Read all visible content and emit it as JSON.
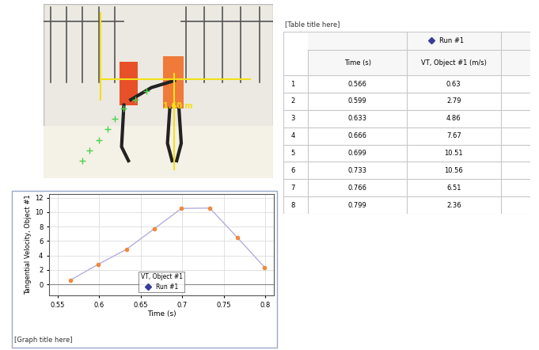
{
  "photo": {
    "label": "1.60 m"
  },
  "table": {
    "title": "[Table title here]",
    "series_header": "Run #1",
    "columns": [
      "Time (s)",
      "VT, Object #1 (m/s)"
    ],
    "rows": [
      [
        1,
        0.566,
        0.63
      ],
      [
        2,
        0.599,
        2.79
      ],
      [
        3,
        0.633,
        4.86
      ],
      [
        4,
        0.666,
        7.67
      ],
      [
        5,
        0.699,
        10.51
      ],
      [
        6,
        0.733,
        10.56
      ],
      [
        7,
        0.766,
        6.51
      ],
      [
        8,
        0.799,
        2.36
      ]
    ]
  },
  "chart_data": {
    "type": "line",
    "title": "[Graph title here]",
    "x_label": "Time (s)",
    "y_label": "Tangential Velocity, Object #1",
    "x": [
      0.566,
      0.599,
      0.633,
      0.666,
      0.699,
      0.733,
      0.766,
      0.799
    ],
    "series": [
      {
        "name": "Run #1",
        "color": "#f0883a",
        "marker": "o",
        "values": [
          0.63,
          2.79,
          4.86,
          7.67,
          10.51,
          10.56,
          6.51,
          2.36
        ]
      }
    ],
    "legend_title": "VT, Object #1",
    "legend": "lower center",
    "xlim": [
      0.54,
      0.81
    ],
    "xticks": [
      0.55,
      0.6,
      0.65,
      0.7,
      0.75,
      0.8
    ],
    "ylim": [
      -1.5,
      12.5
    ],
    "yticks": [
      0,
      2,
      4,
      6,
      8,
      10,
      12
    ],
    "grid": true
  }
}
